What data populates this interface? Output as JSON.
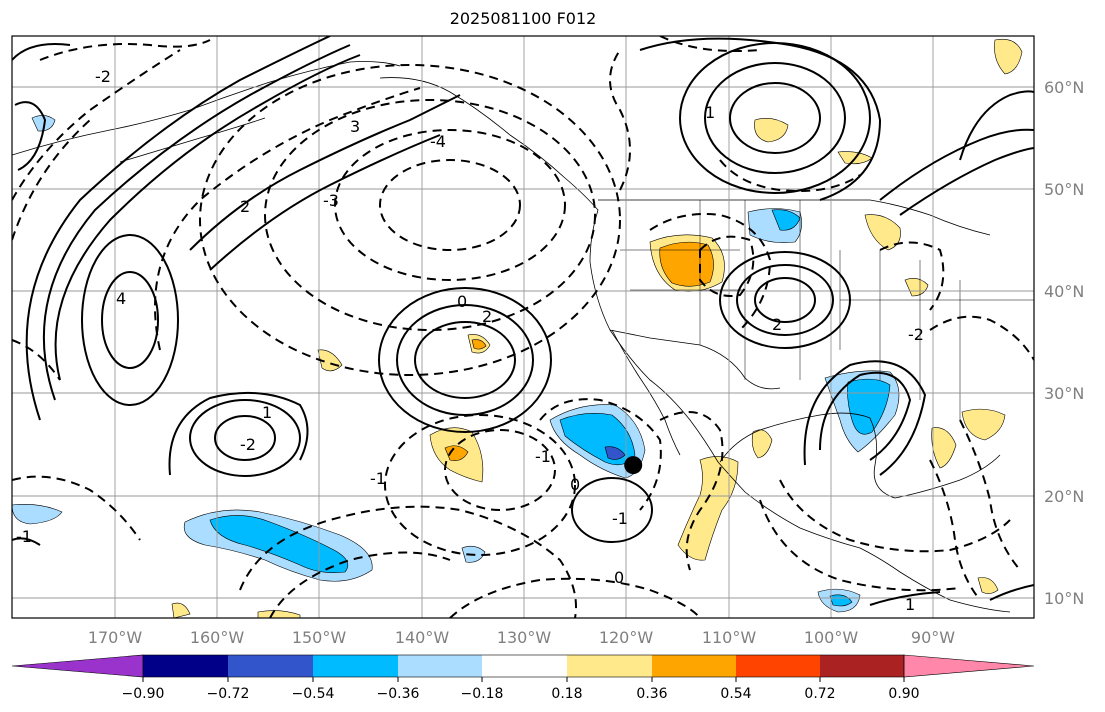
{
  "title": "2025081100 F012",
  "map": {
    "lon_labels": [
      "170°W",
      "160°W",
      "150°W",
      "140°W",
      "130°W",
      "120°W",
      "110°W",
      "100°W",
      "90°W"
    ],
    "lat_labels": [
      "60°N",
      "50°N",
      "40°N",
      "30°N",
      "20°N",
      "10°N"
    ],
    "marker": {
      "lon": -119.3,
      "lat": 23.0
    },
    "contour_labels": [
      "0",
      "2",
      "-4",
      "-2",
      "-1",
      "1",
      "4",
      "-3",
      "3",
      "-2",
      "2",
      "-1",
      "0",
      "-1",
      "2",
      "1",
      "-2",
      "0",
      "1",
      "-1"
    ]
  },
  "colorbar": {
    "ticks": [
      "−0.90",
      "−0.72",
      "−0.54",
      "−0.36",
      "−0.18",
      "0.18",
      "0.36",
      "0.54",
      "0.72",
      "0.90"
    ],
    "colors": [
      "#9933cc",
      "#000088",
      "#3355cc",
      "#00bbff",
      "#aaddff",
      "#ffffff",
      "#ffe98a",
      "#ffa500",
      "#ff4400",
      "#aa2222",
      "#ff88aa"
    ]
  }
}
